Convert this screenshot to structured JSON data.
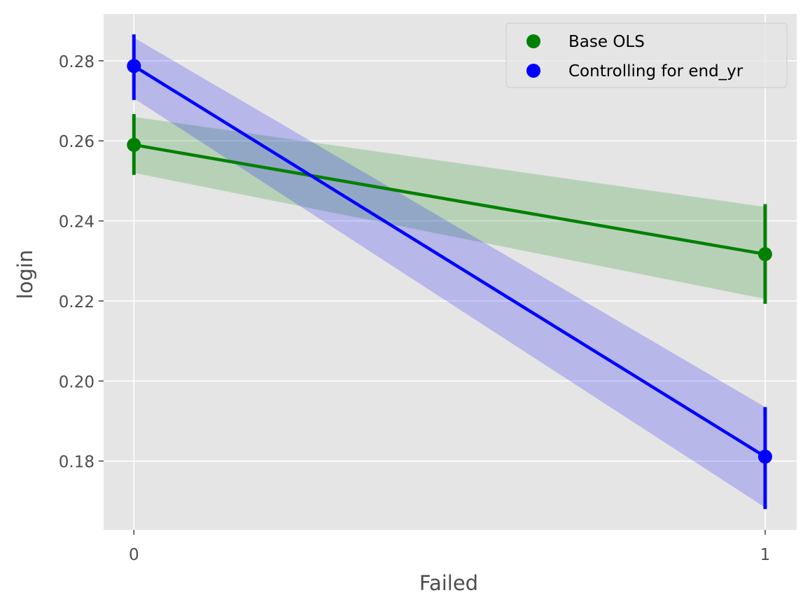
{
  "chart_data": {
    "type": "line",
    "xlabel": "Failed",
    "ylabel": "login",
    "x_ticks": [
      0,
      1
    ],
    "x_tick_labels": [
      "0",
      "1"
    ],
    "y_ticks": [
      0.18,
      0.2,
      0.22,
      0.24,
      0.26,
      0.28
    ],
    "y_tick_labels": [
      "0.18",
      "0.20",
      "0.22",
      "0.24",
      "0.26",
      "0.28"
    ],
    "xlim": [
      -0.048,
      1.05
    ],
    "ylim": [
      0.1628,
      0.2917
    ],
    "grid": true,
    "legend_position": "top-right",
    "series": [
      {
        "name": "Base OLS",
        "color": "#008000",
        "band_color": "#008000",
        "x": [
          0,
          1
        ],
        "values": [
          0.259,
          0.2317
        ],
        "error_low": [
          0.2515,
          0.2193
        ],
        "error_high": [
          0.2667,
          0.2442
        ],
        "band_lower": [
          0.252,
          0.2205
        ],
        "band_upper": [
          0.266,
          0.2435
        ]
      },
      {
        "name": "Controlling for end_yr",
        "color": "#0000ff",
        "band_color": "#0000ff",
        "x": [
          0,
          1
        ],
        "values": [
          0.2787,
          0.1811
        ],
        "error_low": [
          0.2702,
          0.168
        ],
        "error_high": [
          0.2866,
          0.1935
        ],
        "band_lower": [
          0.2706,
          0.1684
        ],
        "band_upper": [
          0.2858,
          0.1935
        ]
      }
    ]
  }
}
